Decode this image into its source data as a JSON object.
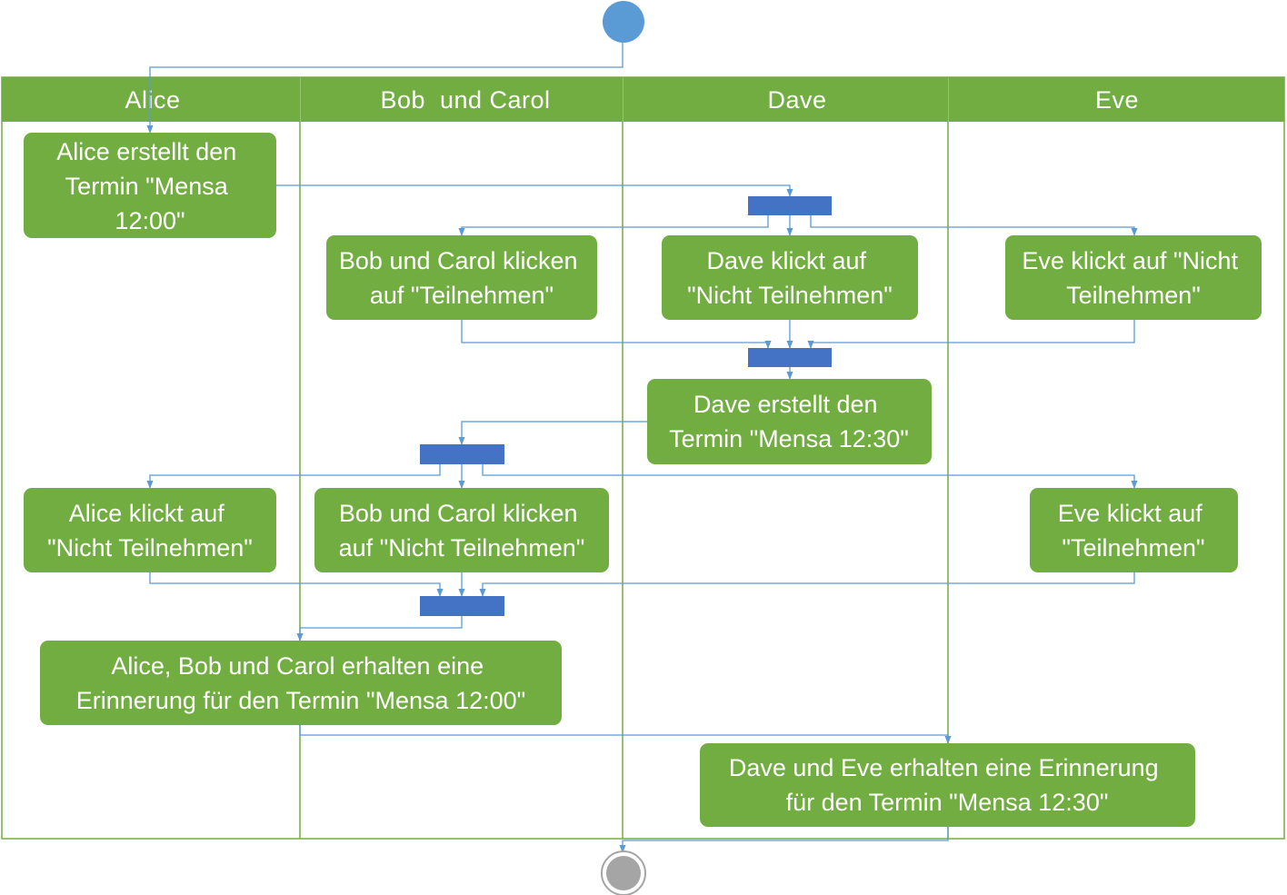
{
  "lanes": [
    "Alice",
    "Bob  und Carol",
    "Dave",
    "Eve"
  ],
  "actions": {
    "alice_creates": [
      "Alice erstellt den",
      "Termin \"Mensa",
      "12:00\""
    ],
    "bob_carol_accept": [
      "Bob und Carol klicken",
      "auf \"Teilnehmen\""
    ],
    "dave_decline": [
      "Dave klickt auf",
      "\"Nicht Teilnehmen\""
    ],
    "eve_decline": [
      "Eve klickt auf \"Nicht",
      "Teilnehmen\""
    ],
    "dave_creates": [
      "Dave erstellt den",
      "Termin \"Mensa 12:30\""
    ],
    "alice_decline": [
      "Alice klickt auf",
      "\"Nicht Teilnehmen\""
    ],
    "bob_carol_decline": [
      "Bob und Carol klicken",
      "auf \"Nicht Teilnehmen\""
    ],
    "eve_accept": [
      "Eve klickt auf",
      "\"Teilnehmen\""
    ],
    "reminder_1200": [
      "Alice, Bob und Carol erhalten eine",
      "Erinnerung für den Termin \"Mensa 12:00\""
    ],
    "reminder_1230": [
      "Dave und Eve erhalten eine Erinnerung",
      "für den Termin \"Mensa 12:30\""
    ]
  },
  "colors": {
    "lane_header": "#71ad40",
    "action_fill": "#71ad40",
    "action_text": "#ffffff",
    "lane_border": "#71ad40",
    "fork_bar": "#4472c4",
    "flow_line": "#5b9bd5",
    "start_node": "#5b9bd5",
    "end_node": "#a5a5a5"
  },
  "icons": {
    "start": "filled-circle-initial-node",
    "end": "bullseye-final-node",
    "fork": "fork-join-bar"
  }
}
